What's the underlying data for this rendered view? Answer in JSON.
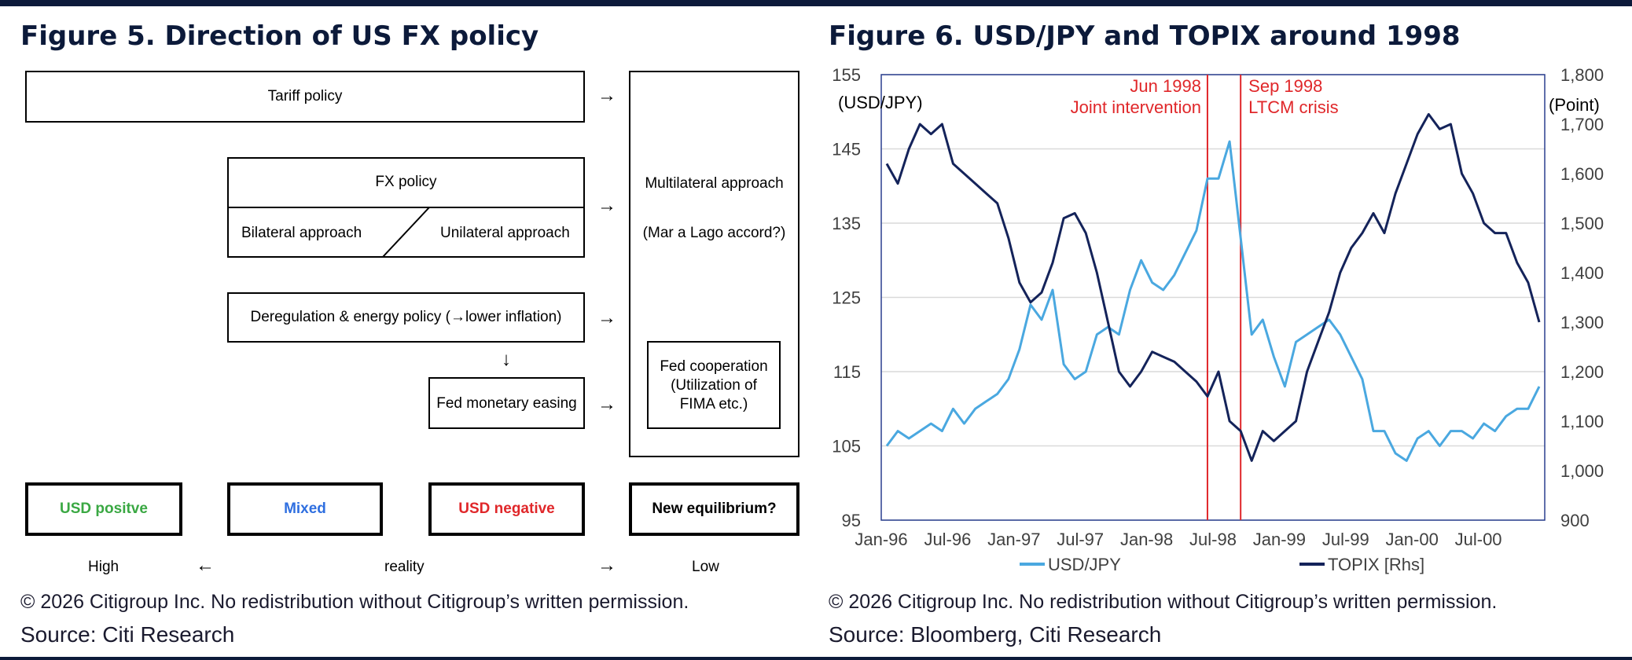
{
  "fig5": {
    "title": "Figure 5. Direction of US FX policy",
    "tariff": "Tariff policy",
    "fx_policy": "FX policy",
    "bilateral": "Bilateral approach",
    "unilateral": "Unilateral approach",
    "dereg": "Deregulation & energy policy (→lower inflation)",
    "fed_easing": "Fed monetary easing",
    "multilateral": "Multilateral approach",
    "mar_a_lago": "(Mar a Lago accord?)",
    "fed_coop_1": "Fed cooperation",
    "fed_coop_2": "(Utilization of",
    "fed_coop_3": "FIMA etc.)",
    "arrow_right": "→",
    "arrow_down": "↓",
    "arrow_left": "←",
    "outcomes": {
      "usd_positive": "USD positve",
      "mixed": "Mixed",
      "usd_negative": "USD negative",
      "new_eq": "New equilibrium?"
    },
    "scale": {
      "high": "High",
      "reality": "reality",
      "low": "Low"
    },
    "colors": {
      "positive": "#3aa843",
      "mixed": "#2f6fe0",
      "negative": "#e0272a"
    },
    "copyright": "© 2026 Citigroup Inc. No redistribution without Citigroup’s written permission.",
    "source": "Source: Citi Research"
  },
  "fig6": {
    "title": "Figure 6. USD/JPY and TOPIX around 1998",
    "copyright": "© 2026 Citigroup Inc. No redistribution without Citigroup’s written permission.",
    "source": "Source: Bloomberg, Citi Research"
  },
  "chart_data": {
    "type": "line",
    "title": "Figure 6. USD/JPY and TOPIX around 1998",
    "ylabel_left": "(USD/JPY)",
    "ylabel_right": "(Point)",
    "ylim_left": [
      95,
      155
    ],
    "ylim_right": [
      900,
      1800
    ],
    "yticks_left": [
      "95",
      "105",
      "115",
      "125",
      "135",
      "145",
      "155"
    ],
    "yticks_right": [
      "900",
      "1,000",
      "1,100",
      "1,200",
      "1,300",
      "1,400",
      "1,500",
      "1,600",
      "1,700",
      "1,800"
    ],
    "xticks": [
      "Jan-96",
      "Jul-96",
      "Jan-97",
      "Jul-97",
      "Jan-98",
      "Jul-98",
      "Jan-99",
      "Jul-99",
      "Jan-00",
      "Jul-00"
    ],
    "x_range": [
      "1996-01",
      "2000-12"
    ],
    "grid": true,
    "legend_position": "bottom",
    "annotations": [
      {
        "date": "1998-06",
        "label_1": "Jun 1998",
        "label_2": "Joint intervention",
        "color": "#e0272a"
      },
      {
        "date": "1998-09",
        "label_1": "Sep 1998",
        "label_2": "LTCM crisis",
        "color": "#e0272a"
      }
    ],
    "series": [
      {
        "name": "USD/JPY",
        "axis": "left",
        "color": "#4aa8e0",
        "x": [
          "1996-01",
          "1996-02",
          "1996-03",
          "1996-04",
          "1996-05",
          "1996-06",
          "1996-07",
          "1996-08",
          "1996-09",
          "1996-10",
          "1996-11",
          "1996-12",
          "1997-01",
          "1997-02",
          "1997-03",
          "1997-04",
          "1997-05",
          "1997-06",
          "1997-07",
          "1997-08",
          "1997-09",
          "1997-10",
          "1997-11",
          "1997-12",
          "1998-01",
          "1998-02",
          "1998-03",
          "1998-04",
          "1998-05",
          "1998-06",
          "1998-07",
          "1998-08",
          "1998-09",
          "1998-10",
          "1998-11",
          "1998-12",
          "1999-01",
          "1999-02",
          "1999-03",
          "1999-04",
          "1999-05",
          "1999-06",
          "1999-07",
          "1999-08",
          "1999-09",
          "1999-10",
          "1999-11",
          "1999-12",
          "2000-01",
          "2000-02",
          "2000-03",
          "2000-04",
          "2000-05",
          "2000-06",
          "2000-07",
          "2000-08",
          "2000-09",
          "2000-10",
          "2000-11",
          "2000-12"
        ],
        "values": [
          105,
          107,
          106,
          107,
          108,
          107,
          110,
          108,
          110,
          111,
          112,
          114,
          118,
          124,
          122,
          126,
          116,
          114,
          115,
          120,
          121,
          120,
          126,
          130,
          127,
          126,
          128,
          131,
          134,
          141,
          141,
          146,
          133,
          120,
          122,
          117,
          113,
          119,
          120,
          121,
          122,
          120,
          117,
          114,
          107,
          107,
          104,
          103,
          106,
          107,
          105,
          107,
          107,
          106,
          108,
          107,
          109,
          110,
          110,
          113
        ]
      },
      {
        "name": "TOPIX [Rhs]",
        "axis": "right",
        "color": "#14235a",
        "x": [
          "1996-01",
          "1996-02",
          "1996-03",
          "1996-04",
          "1996-05",
          "1996-06",
          "1996-07",
          "1996-08",
          "1996-09",
          "1996-10",
          "1996-11",
          "1996-12",
          "1997-01",
          "1997-02",
          "1997-03",
          "1997-04",
          "1997-05",
          "1997-06",
          "1997-07",
          "1997-08",
          "1997-09",
          "1997-10",
          "1997-11",
          "1997-12",
          "1998-01",
          "1998-02",
          "1998-03",
          "1998-04",
          "1998-05",
          "1998-06",
          "1998-07",
          "1998-08",
          "1998-09",
          "1998-10",
          "1998-11",
          "1998-12",
          "1999-01",
          "1999-02",
          "1999-03",
          "1999-04",
          "1999-05",
          "1999-06",
          "1999-07",
          "1999-08",
          "1999-09",
          "1999-10",
          "1999-11",
          "1999-12",
          "2000-01",
          "2000-02",
          "2000-03",
          "2000-04",
          "2000-05",
          "2000-06",
          "2000-07",
          "2000-08",
          "2000-09",
          "2000-10",
          "2000-11",
          "2000-12"
        ],
        "values": [
          1620,
          1580,
          1650,
          1700,
          1680,
          1700,
          1620,
          1600,
          1580,
          1560,
          1540,
          1470,
          1380,
          1340,
          1360,
          1420,
          1510,
          1520,
          1480,
          1400,
          1300,
          1200,
          1170,
          1200,
          1240,
          1230,
          1220,
          1200,
          1180,
          1150,
          1200,
          1100,
          1080,
          1020,
          1080,
          1060,
          1080,
          1100,
          1200,
          1260,
          1320,
          1400,
          1450,
          1480,
          1520,
          1480,
          1560,
          1620,
          1680,
          1720,
          1690,
          1700,
          1600,
          1560,
          1500,
          1480,
          1480,
          1420,
          1380,
          1300
        ]
      }
    ]
  }
}
